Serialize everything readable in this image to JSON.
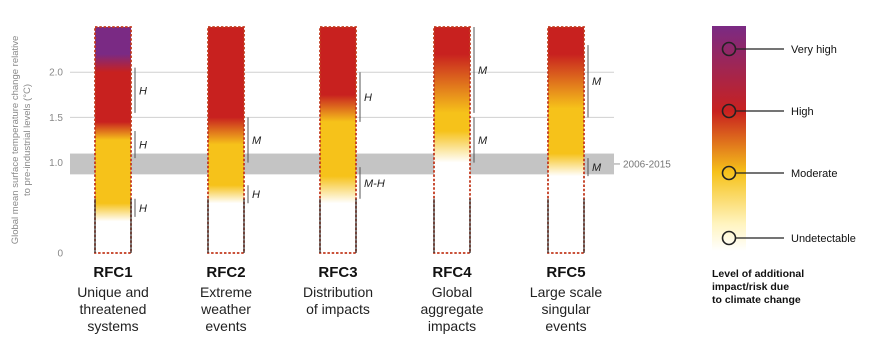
{
  "chart_data": {
    "type": "embers",
    "ylabel": "Global mean surface temperature change relative to pre-industrial levels (°C)",
    "yticks": [
      0,
      1.0,
      1.5,
      2.0
    ],
    "ylim": [
      0,
      2.5
    ],
    "observed_band": {
      "label": "2006-2015",
      "range": [
        0.87,
        1.1
      ]
    },
    "categories": [
      {
        "id": "RFC1",
        "name": [
          "Unique and",
          "threatened",
          "systems"
        ],
        "stops": [
          [
            0,
            0
          ],
          [
            0.35,
            0
          ],
          [
            0.55,
            1
          ],
          [
            1.25,
            1
          ],
          [
            1.45,
            2
          ],
          [
            2.0,
            2
          ],
          [
            2.2,
            3
          ],
          [
            2.5,
            3
          ]
        ],
        "confidence": [
          {
            "range": [
              0.4,
              0.6
            ],
            "label": "H"
          },
          {
            "range": [
              1.05,
              1.35
            ],
            "label": "H"
          },
          {
            "range": [
              1.55,
              2.05
            ],
            "label": "H"
          }
        ]
      },
      {
        "id": "RFC2",
        "name": [
          "Extreme",
          "weather",
          "events"
        ],
        "stops": [
          [
            0,
            0
          ],
          [
            0.55,
            0
          ],
          [
            0.75,
            1
          ],
          [
            1.2,
            1
          ],
          [
            1.5,
            2
          ],
          [
            2.5,
            2
          ]
        ],
        "confidence": [
          {
            "range": [
              0.55,
              0.75
            ],
            "label": "H"
          },
          {
            "range": [
              1.0,
              1.5
            ],
            "label": "M"
          }
        ]
      },
      {
        "id": "RFC3",
        "name": [
          "Distribution",
          "of impacts"
        ],
        "stops": [
          [
            0,
            0
          ],
          [
            0.55,
            0
          ],
          [
            0.85,
            1
          ],
          [
            1.45,
            1
          ],
          [
            1.75,
            2
          ],
          [
            2.5,
            2
          ]
        ],
        "confidence": [
          {
            "range": [
              0.6,
              0.95
            ],
            "label": "M-H"
          },
          {
            "range": [
              1.45,
              2.0
            ],
            "label": "H"
          }
        ]
      },
      {
        "id": "RFC4",
        "name": [
          "Global",
          "aggregate",
          "impacts"
        ],
        "stops": [
          [
            0,
            0
          ],
          [
            1.0,
            0
          ],
          [
            1.35,
            1
          ],
          [
            1.55,
            1
          ],
          [
            2.2,
            2
          ],
          [
            2.5,
            2
          ]
        ],
        "confidence": [
          {
            "range": [
              1.0,
              1.5
            ],
            "label": "M"
          },
          {
            "range": [
              1.55,
              2.5
            ],
            "label": "M"
          }
        ]
      },
      {
        "id": "RFC5",
        "name": [
          "Large scale",
          "singular",
          "events"
        ],
        "stops": [
          [
            0,
            0
          ],
          [
            0.85,
            0
          ],
          [
            1.1,
            1
          ],
          [
            1.6,
            1
          ],
          [
            2.2,
            2
          ],
          [
            2.5,
            2
          ]
        ],
        "confidence": [
          {
            "range": [
              0.85,
              1.05
            ],
            "label": "M"
          },
          {
            "range": [
              1.5,
              2.3
            ],
            "label": "M"
          }
        ]
      }
    ],
    "legend": {
      "levels": [
        "Very high",
        "High",
        "Moderate",
        "Undetectable"
      ],
      "title": [
        "Level of additional",
        "impact/risk due",
        "to climate change"
      ]
    }
  }
}
